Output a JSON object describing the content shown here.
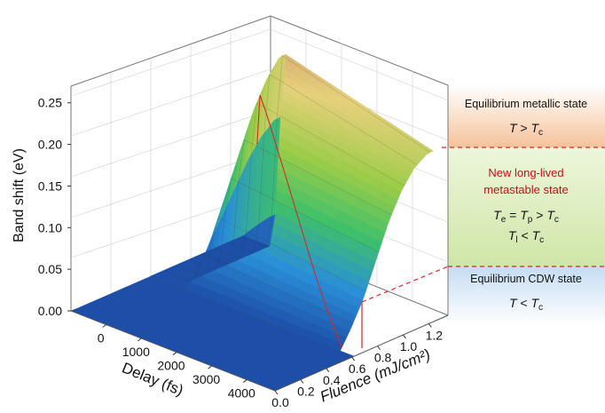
{
  "chart_data": {
    "type": "surface3d",
    "title": "",
    "xlabel": "Delay (fs)",
    "ylabel": "Fluence (mJ/cm²)",
    "zlabel": "Band shift (eV)",
    "x_ticks": [
      "0",
      "1000",
      "2000",
      "3000",
      "4000"
    ],
    "y_ticks": [
      "0.0",
      "0.2",
      "0.4",
      "0.6",
      "0.8",
      "1.0",
      "1.2"
    ],
    "z_ticks": [
      "0.00",
      "0.05",
      "0.10",
      "0.15",
      "0.20",
      "0.25"
    ],
    "xlim": [
      -1000,
      4800
    ],
    "ylim": [
      0.0,
      1.35
    ],
    "zlim": [
      0.0,
      0.27
    ],
    "fluence_threshold": 0.62,
    "fluence_saturation": 1.35,
    "delay_samples": [
      0,
      200,
      400,
      800,
      1500,
      2500,
      3500,
      4500
    ],
    "ridge_profile": {
      "name": "",
      "fluence": [
        0.62,
        0.7,
        0.8,
        0.9,
        1.0,
        1.1,
        1.2,
        1.3
      ],
      "band_shift_at_0fs": [
        0.0,
        0.03,
        0.07,
        0.11,
        0.15,
        0.19,
        0.22,
        0.24
      ],
      "band_shift_at_4500fs": [
        0.0,
        0.02,
        0.05,
        0.09,
        0.13,
        0.16,
        0.18,
        0.19
      ]
    },
    "colormap": [
      "#1d4fa8",
      "#2a8fd8",
      "#3ec06a",
      "#9ccc48",
      "#e6d07a",
      "#c98a6a"
    ],
    "grid": true
  },
  "annotations": {
    "metallic": {
      "title": "Equilibrium metallic state",
      "condition_lhs": "T",
      "condition_op": " > ",
      "condition_rhs": "T",
      "condition_rhs_sub": "c"
    },
    "metastable": {
      "title_line1": "New long-lived",
      "title_line2": "metastable state",
      "cond1_a": "T",
      "cond1_a_sub": "e",
      "cond1_eq": " = ",
      "cond1_b": "T",
      "cond1_b_sub": "p",
      "cond1_gt": " > ",
      "cond1_c": "T",
      "cond1_c_sub": "c",
      "cond2_a": "T",
      "cond2_a_sub": "l",
      "cond2_lt": " < ",
      "cond2_b": "T",
      "cond2_b_sub": "c"
    },
    "cdw": {
      "title": "Equilibrium CDW state",
      "condition_lhs": "T",
      "condition_op": " < ",
      "condition_rhs": "T",
      "condition_rhs_sub": "c"
    }
  },
  "colors": {
    "metallic_band": "#f6c9a6",
    "metastable_band": "#d9ecb8",
    "cdw_band": "#cfe2f3",
    "dashed_line": "#d62728",
    "red_text": "#c0121b",
    "box_edge": "#555555"
  }
}
